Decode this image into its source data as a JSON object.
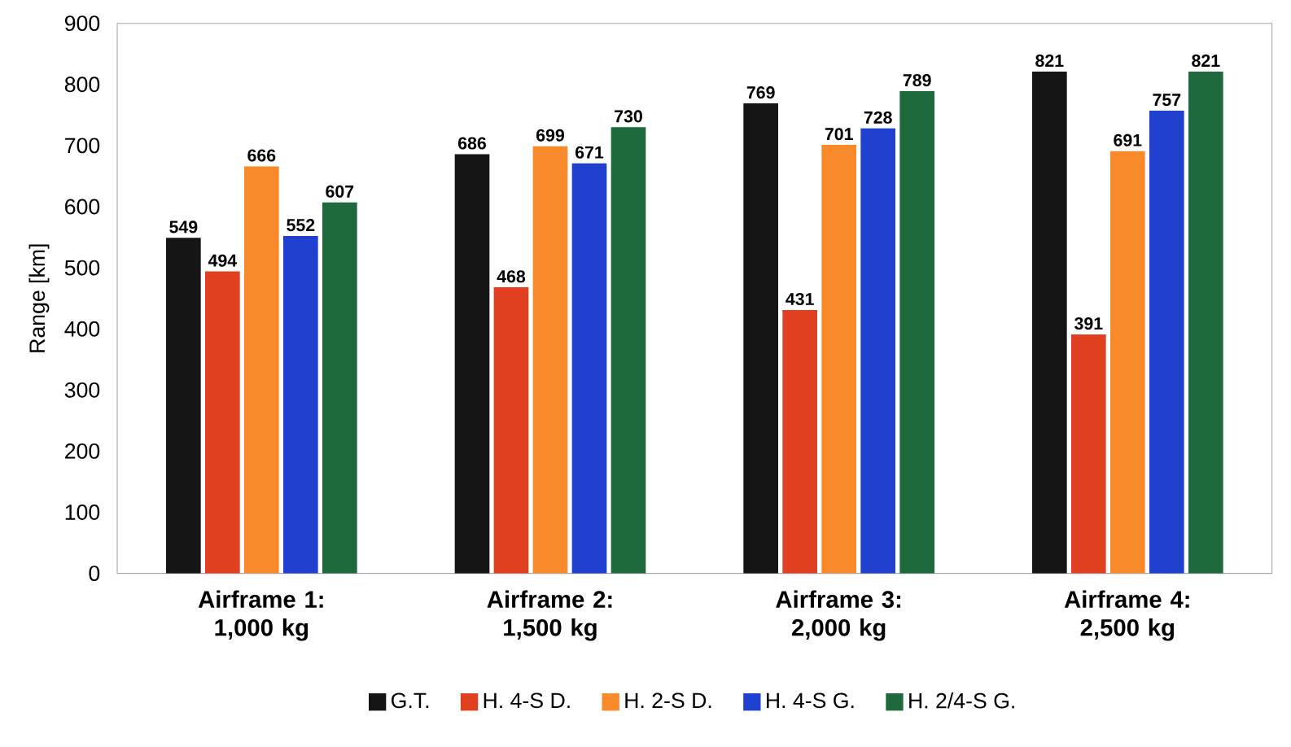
{
  "chart_data": {
    "type": "bar",
    "ylabel": "Range [km]",
    "categories": [
      "Airframe 1: 1,000 kg",
      "Airframe 2: 1,500 kg",
      "Airframe 3: 2,000 kg",
      "Airframe 4: 2,500 kg"
    ],
    "series": [
      {
        "name": "G.T.",
        "color": "#151515",
        "values": [
          549,
          686,
          769,
          821
        ]
      },
      {
        "name": "H. 4-S D.",
        "color": "#e0401f",
        "values": [
          494,
          468,
          431,
          391
        ]
      },
      {
        "name": "H. 2-S D.",
        "color": "#f98a2c",
        "values": [
          666,
          699,
          701,
          691
        ]
      },
      {
        "name": "H. 4-S G.",
        "color": "#2040d0",
        "values": [
          552,
          671,
          728,
          757
        ]
      },
      {
        "name": "H. 2/4-S G.",
        "color": "#1f6a3c",
        "values": [
          607,
          730,
          789,
          821
        ]
      }
    ],
    "ylim": [
      0,
      900
    ],
    "yticks": [
      0,
      100,
      200,
      300,
      400,
      500,
      600,
      700,
      800,
      900
    ],
    "data_labels": true,
    "legend": "bottom",
    "grid": false
  }
}
